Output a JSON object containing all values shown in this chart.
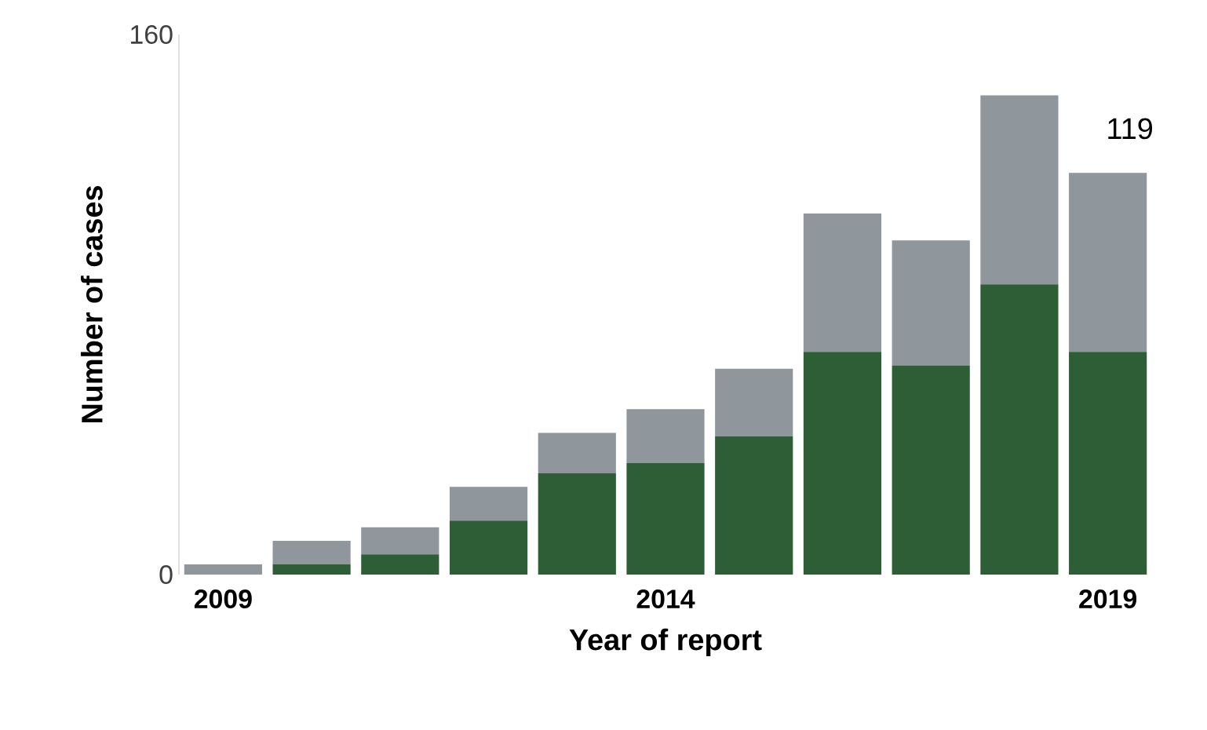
{
  "chart_data": {
    "type": "bar",
    "stacked": true,
    "xlabel": "Year of report",
    "ylabel": "Number of cases",
    "categories": [
      "2009",
      null,
      null,
      null,
      null,
      "2014",
      null,
      null,
      null,
      null,
      "2019"
    ],
    "series": [
      {
        "color": "#2d5e36",
        "values": [
          0,
          3,
          6,
          16,
          30,
          33,
          41,
          66,
          62,
          86,
          66
        ]
      },
      {
        "color": "#8f969c",
        "values": [
          3,
          7,
          8,
          10,
          12,
          16,
          20,
          41,
          37,
          56,
          53
        ]
      }
    ],
    "ylim": [
      0,
      160
    ],
    "yticks": [
      0,
      160
    ],
    "annotations": [
      {
        "text": "119",
        "x": "2019",
        "y": 119
      }
    ]
  }
}
